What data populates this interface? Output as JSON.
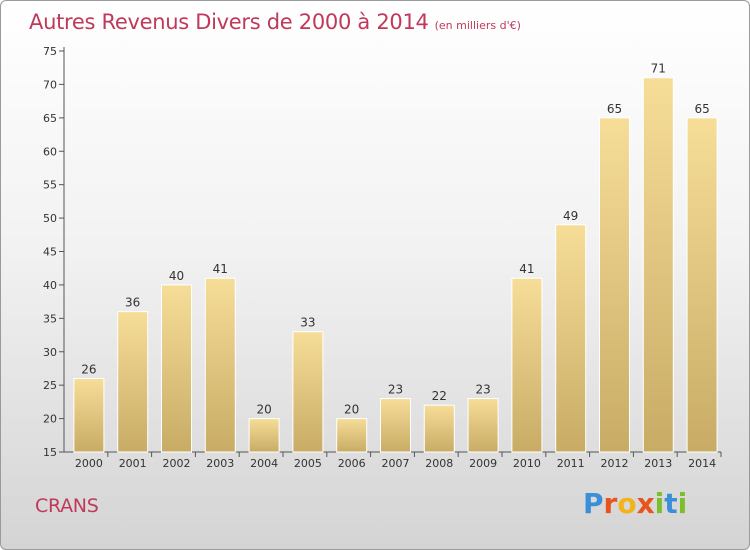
{
  "title": "Autres Revenus Divers de 2000 à 2014",
  "title_unit": "(en milliers d'€)",
  "commune": "CRANS",
  "logo_text": "Proxiti",
  "colors": {
    "accent": "#c0395a",
    "bar_top": "#f6dd98",
    "bar_bottom": "#c8ac66",
    "bar_border": "#ffffff"
  },
  "chart_data": {
    "type": "bar",
    "title": "Autres Revenus Divers de 2000 à 2014",
    "xlabel": "",
    "ylabel": "",
    "categories": [
      "2000",
      "2001",
      "2002",
      "2003",
      "2004",
      "2005",
      "2006",
      "2007",
      "2008",
      "2009",
      "2010",
      "2011",
      "2012",
      "2013",
      "2014"
    ],
    "values": [
      26,
      36,
      40,
      41,
      20,
      33,
      20,
      23,
      22,
      23,
      41,
      49,
      65,
      71,
      65
    ],
    "ylim": [
      15,
      75
    ],
    "yticks": [
      15,
      20,
      25,
      30,
      35,
      40,
      45,
      50,
      55,
      60,
      65,
      70,
      75
    ],
    "grid": false,
    "data_labels": true
  }
}
